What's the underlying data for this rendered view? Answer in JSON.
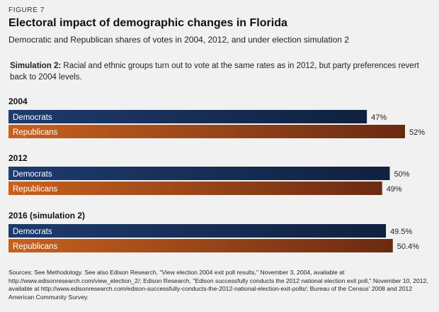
{
  "figure_label": "FIGURE 7",
  "title": "Electoral impact of demographic changes in Florida",
  "subtitle": "Democratic and Republican shares of votes in 2004, 2012, and under election simulation 2",
  "simulation_note": {
    "lead": "Simulation 2:",
    "text": " Racial and ethnic groups turn out to vote at the same rates as in 2012, but party preferences revert back to 2004 levels."
  },
  "sources": "Sources: See Methodology. See also Edison Research, \"View election 2004 exit poll results,\" November 3, 2004, available at http://www.edisonresearch.com/view_election_2/; Edison Research, \"Edison successfully conducts the 2012 national election exit poll,\" November 10, 2012, available at http://www.edisonresearch.com/edison-successfully-conducts-the-2012-national-election-exit-polls/; Bureau of the Census' 2008 and 2012 American Community Survey.",
  "colors": {
    "democrats_start": "#1e3b6e",
    "democrats_end": "#10213f",
    "republicans_start": "#c8611e",
    "republicans_end": "#6b2a12"
  },
  "chart_data": {
    "type": "bar",
    "orientation": "horizontal",
    "title": "Electoral impact of demographic changes in Florida",
    "xlabel": "",
    "ylabel": "",
    "unit": "%",
    "groups": [
      {
        "name": "2004",
        "series": [
          {
            "name": "Democrats",
            "value": 47,
            "label": "47%"
          },
          {
            "name": "Republicans",
            "value": 52,
            "label": "52%"
          }
        ]
      },
      {
        "name": "2012",
        "series": [
          {
            "name": "Democrats",
            "value": 50,
            "label": "50%"
          },
          {
            "name": "Republicans",
            "value": 49,
            "label": "49%"
          }
        ]
      },
      {
        "name": "2016 (simulation 2)",
        "series": [
          {
            "name": "Democrats",
            "value": 49.5,
            "label": "49.5%"
          },
          {
            "name": "Republicans",
            "value": 50.4,
            "label": "50.4%"
          }
        ]
      }
    ],
    "xlim": [
      0,
      52
    ]
  }
}
